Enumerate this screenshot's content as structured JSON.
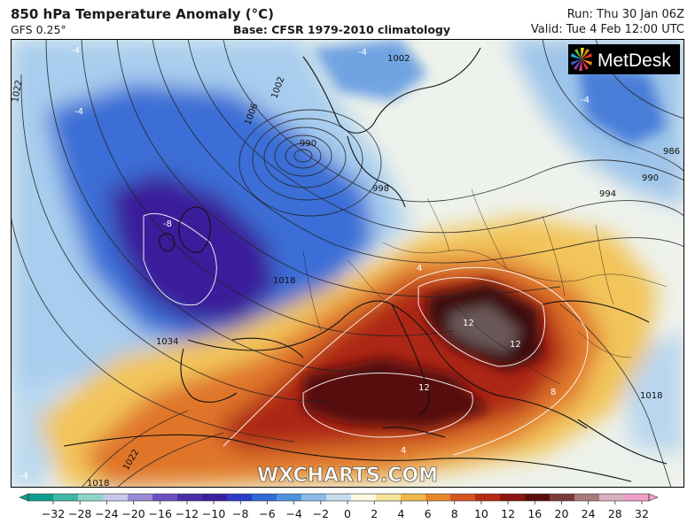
{
  "header": {
    "title": "850 hPa Temperature Anomaly (°C)",
    "model": "GFS 0.25°",
    "base": "Base: CFSR 1979-2010 climatology",
    "run": "Run: Thu 30 Jan 06Z",
    "valid": "Valid: Tue 4 Feb 12:00 UTC"
  },
  "logo": {
    "text": "MetDesk"
  },
  "watermark": "WXCHARTS.COM",
  "isobar_labels": [
    "1022",
    "1002",
    "1006",
    "1002",
    "990",
    "998",
    "1018",
    "1034",
    "994",
    "990",
    "986",
    "1018",
    "1022",
    "1018"
  ],
  "anomaly_labels": [
    "-4",
    "-4",
    "-4",
    "-8",
    "4",
    "12",
    "12",
    "12",
    "8",
    "4",
    "-4",
    "-4"
  ],
  "legend": {
    "ticks": [
      "−32",
      "−28",
      "−24",
      "−20",
      "−16",
      "−12",
      "−10",
      "−8",
      "−6",
      "−4",
      "−2",
      "0",
      "2",
      "4",
      "6",
      "8",
      "10",
      "12",
      "16",
      "20",
      "24",
      "28",
      "32"
    ],
    "colors": [
      "#0f9e8e",
      "#3fb8a6",
      "#8fd6c8",
      "#c8c8e8",
      "#9a8ad6",
      "#6e4fc2",
      "#4a2ea8",
      "#3a1fa0",
      "#2a3cc8",
      "#2f6ad6",
      "#4e93e0",
      "#8cbde8",
      "#c6dff0",
      "#fffbe0",
      "#f6e49a",
      "#f2b84a",
      "#e8862c",
      "#d45420",
      "#b82a14",
      "#8a1410",
      "#5a0a0a",
      "#7a3a3a",
      "#a87a7a",
      "#d8b0c0",
      "#f0a0c8"
    ]
  },
  "colors": {
    "deep_cold": "#3a1fa0",
    "cold": "#2f62d0",
    "cool": "#7fb4e6",
    "neutral": "#f1f3e6",
    "warm": "#f2c55a",
    "hot": "#de6a22",
    "very_hot": "#a8200f",
    "extreme": "#3c0a08"
  }
}
